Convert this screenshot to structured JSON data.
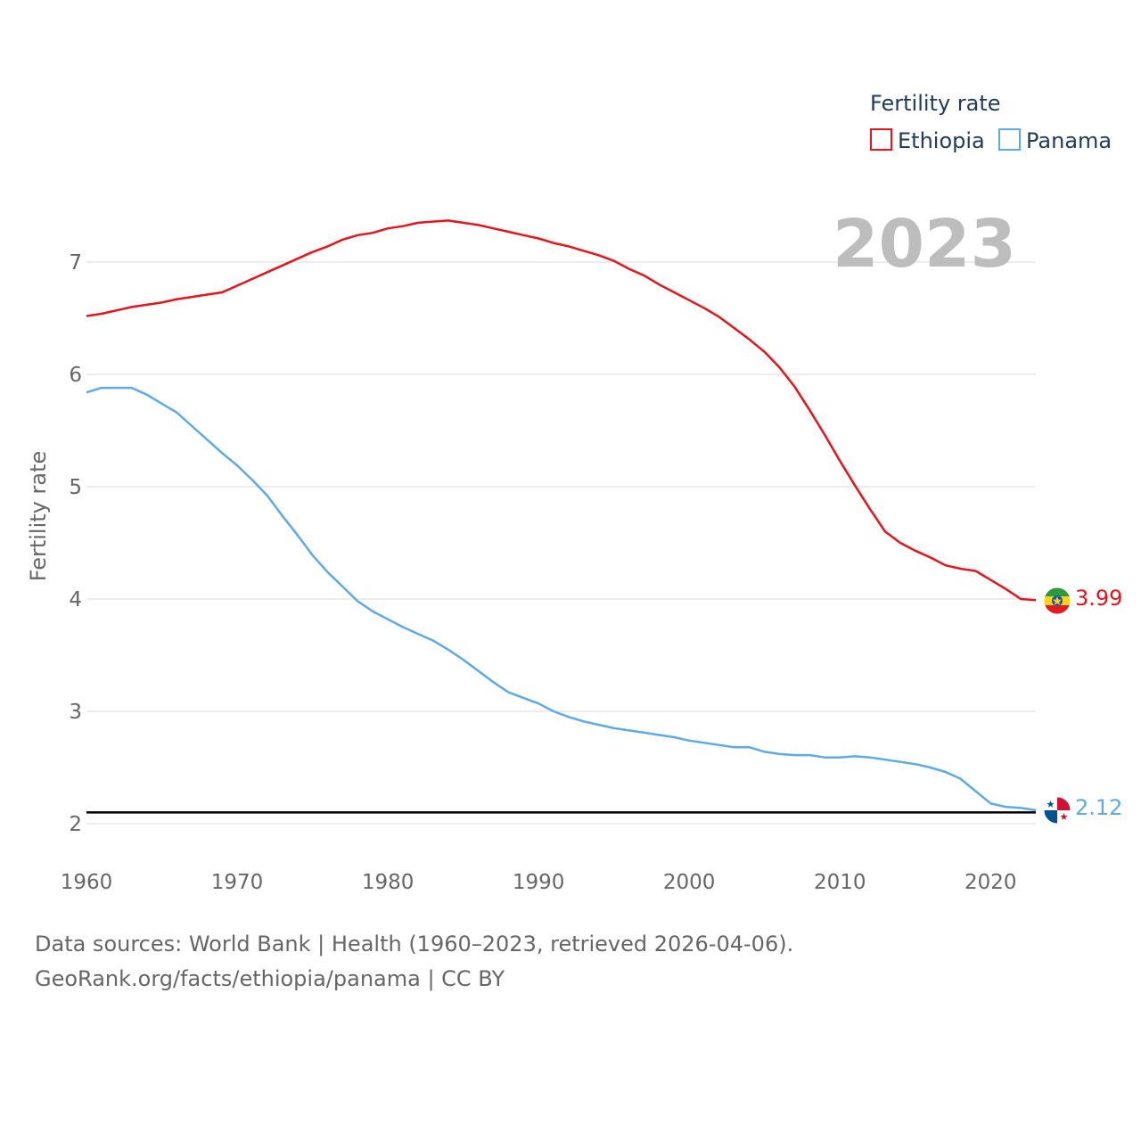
{
  "chart_data": {
    "type": "line",
    "title": "",
    "xlabel": "",
    "ylabel": "Fertility rate",
    "xlim": [
      1960,
      2023
    ],
    "ylim": [
      2,
      7
    ],
    "x_ticks": [
      1960,
      1970,
      1980,
      1990,
      2000,
      2010,
      2020
    ],
    "y_ticks": [
      2,
      3,
      4,
      5,
      6,
      7
    ],
    "grid": true,
    "legend_title": "Fertility rate",
    "legend_position": "top-right",
    "year_label": "2023",
    "reference_line": {
      "y": 2.1,
      "color": "#000000"
    },
    "x": [
      1960,
      1961,
      1962,
      1963,
      1964,
      1965,
      1966,
      1967,
      1968,
      1969,
      1970,
      1971,
      1972,
      1973,
      1974,
      1975,
      1976,
      1977,
      1978,
      1979,
      1980,
      1981,
      1982,
      1983,
      1984,
      1985,
      1986,
      1987,
      1988,
      1989,
      1990,
      1991,
      1992,
      1993,
      1994,
      1995,
      1996,
      1997,
      1998,
      1999,
      2000,
      2001,
      2002,
      2003,
      2004,
      2005,
      2006,
      2007,
      2008,
      2009,
      2010,
      2011,
      2012,
      2013,
      2014,
      2015,
      2016,
      2017,
      2018,
      2019,
      2020,
      2021,
      2022,
      2023
    ],
    "series": [
      {
        "name": "Ethiopia",
        "color": "#e8141b",
        "end_label": "3.99",
        "flag": "ethiopia-flag-icon",
        "values": [
          6.52,
          6.54,
          6.57,
          6.6,
          6.62,
          6.64,
          6.67,
          6.69,
          6.71,
          6.73,
          6.79,
          6.85,
          6.91,
          6.97,
          7.03,
          7.09,
          7.14,
          7.2,
          7.24,
          7.26,
          7.3,
          7.32,
          7.35,
          7.36,
          7.37,
          7.35,
          7.33,
          7.3,
          7.27,
          7.24,
          7.21,
          7.17,
          7.14,
          7.1,
          7.06,
          7.01,
          6.94,
          6.88,
          6.8,
          6.73,
          6.66,
          6.59,
          6.51,
          6.41,
          6.31,
          6.2,
          6.06,
          5.89,
          5.68,
          5.46,
          5.23,
          5.01,
          4.8,
          4.6,
          4.5,
          4.43,
          4.37,
          4.3,
          4.27,
          4.25,
          4.17,
          4.09,
          4.0,
          3.99
        ]
      },
      {
        "name": "Panama",
        "color": "#5da9e9",
        "end_label": "2.12",
        "flag": "panama-flag-icon",
        "values": [
          5.84,
          5.88,
          5.88,
          5.88,
          5.82,
          5.74,
          5.66,
          5.54,
          5.42,
          5.3,
          5.19,
          5.06,
          4.92,
          4.74,
          4.57,
          4.39,
          4.24,
          4.11,
          3.98,
          3.89,
          3.82,
          3.75,
          3.69,
          3.63,
          3.55,
          3.46,
          3.36,
          3.26,
          3.17,
          3.12,
          3.07,
          3.0,
          2.95,
          2.91,
          2.88,
          2.85,
          2.83,
          2.81,
          2.79,
          2.77,
          2.74,
          2.72,
          2.7,
          2.68,
          2.68,
          2.64,
          2.62,
          2.61,
          2.61,
          2.59,
          2.59,
          2.6,
          2.59,
          2.57,
          2.55,
          2.53,
          2.5,
          2.46,
          2.4,
          2.29,
          2.18,
          2.15,
          2.14,
          2.12
        ]
      }
    ]
  },
  "footer": {
    "line1": "Data sources: World Bank | Health (1960–2023, retrieved 2026-04-06).",
    "line2": "GeoRank.org/facts/ethiopia/panama | CC BY"
  }
}
